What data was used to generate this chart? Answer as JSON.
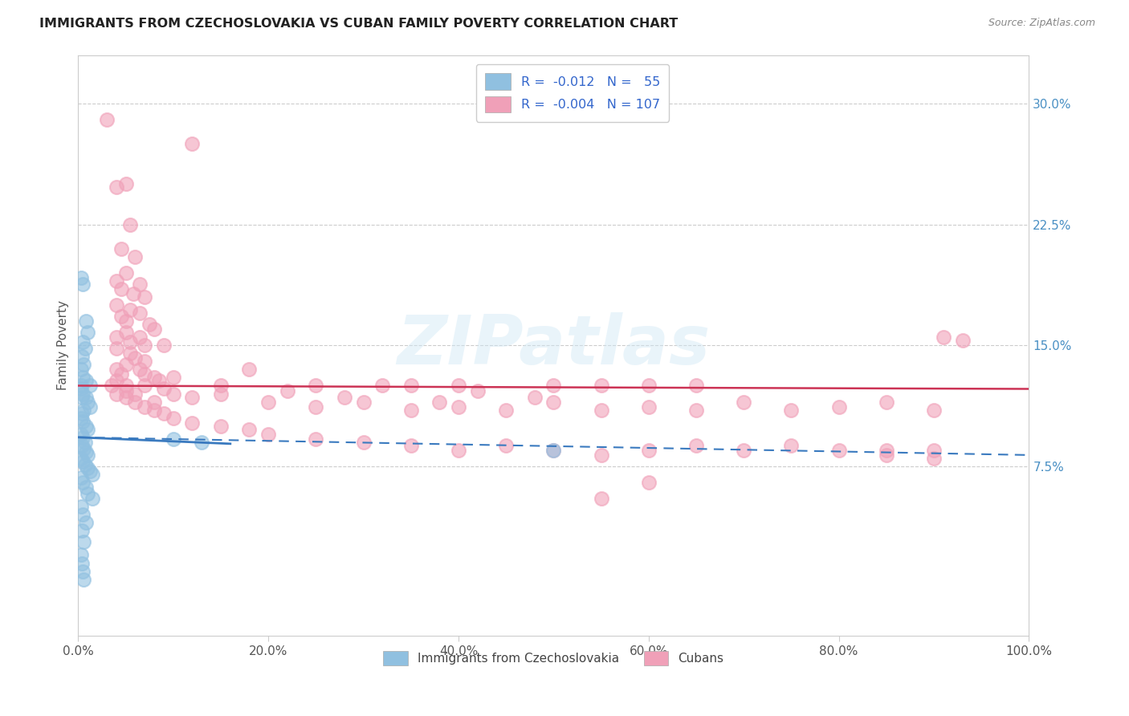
{
  "title": "IMMIGRANTS FROM CZECHOSLOVAKIA VS CUBAN FAMILY POVERTY CORRELATION CHART",
  "source": "Source: ZipAtlas.com",
  "ylabel": "Family Poverty",
  "ytick_values": [
    7.5,
    15.0,
    22.5,
    30.0
  ],
  "legend_bottom": [
    "Immigrants from Czechoslovakia",
    "Cubans"
  ],
  "watermark": "ZIPatlas",
  "blue_color": "#90c0e0",
  "pink_color": "#f0a0b8",
  "blue_line_color": "#3a7abf",
  "pink_line_color": "#cc3355",
  "xlim": [
    0,
    100
  ],
  "ylim": [
    -3,
    33
  ],
  "pink_regression_y0": 12.5,
  "pink_regression_y100": 12.3,
  "blue_solid_x0": 0.0,
  "blue_solid_y0": 9.3,
  "blue_solid_x1": 16.0,
  "blue_solid_y1": 8.9,
  "blue_dash_x0": 0.0,
  "blue_dash_y0": 9.3,
  "blue_dash_x1": 100.0,
  "blue_dash_y1": 8.2,
  "blue_scatter": [
    [
      0.3,
      19.2
    ],
    [
      0.5,
      18.8
    ],
    [
      0.8,
      16.5
    ],
    [
      1.0,
      15.8
    ],
    [
      0.5,
      15.2
    ],
    [
      0.7,
      14.8
    ],
    [
      0.4,
      14.3
    ],
    [
      0.6,
      13.8
    ],
    [
      0.3,
      13.5
    ],
    [
      0.5,
      13.0
    ],
    [
      0.8,
      12.8
    ],
    [
      1.2,
      12.5
    ],
    [
      0.3,
      12.3
    ],
    [
      0.5,
      12.0
    ],
    [
      0.8,
      11.8
    ],
    [
      1.0,
      11.5
    ],
    [
      1.2,
      11.2
    ],
    [
      0.6,
      11.0
    ],
    [
      0.4,
      10.8
    ],
    [
      0.3,
      10.5
    ],
    [
      0.5,
      10.3
    ],
    [
      0.8,
      10.0
    ],
    [
      1.0,
      9.8
    ],
    [
      0.3,
      9.5
    ],
    [
      0.5,
      9.3
    ],
    [
      0.7,
      9.0
    ],
    [
      0.4,
      8.8
    ],
    [
      0.6,
      8.6
    ],
    [
      0.8,
      8.4
    ],
    [
      1.0,
      8.2
    ],
    [
      0.3,
      8.0
    ],
    [
      0.5,
      7.8
    ],
    [
      0.7,
      7.6
    ],
    [
      1.0,
      7.4
    ],
    [
      1.2,
      7.2
    ],
    [
      1.5,
      7.0
    ],
    [
      0.3,
      6.8
    ],
    [
      0.5,
      6.5
    ],
    [
      0.8,
      6.2
    ],
    [
      1.0,
      5.8
    ],
    [
      1.5,
      5.5
    ],
    [
      0.3,
      5.0
    ],
    [
      0.5,
      4.5
    ],
    [
      0.8,
      4.0
    ],
    [
      0.4,
      3.5
    ],
    [
      0.6,
      2.8
    ],
    [
      0.3,
      2.0
    ],
    [
      0.4,
      1.5
    ],
    [
      0.5,
      1.0
    ],
    [
      0.6,
      0.5
    ],
    [
      13.0,
      9.0
    ],
    [
      10.0,
      9.2
    ],
    [
      50.0,
      8.5
    ],
    [
      0.3,
      12.5
    ],
    [
      0.4,
      11.8
    ]
  ],
  "pink_scatter": [
    [
      3.0,
      29.0
    ],
    [
      12.0,
      27.5
    ],
    [
      5.0,
      25.0
    ],
    [
      4.0,
      24.8
    ],
    [
      5.5,
      22.5
    ],
    [
      4.5,
      21.0
    ],
    [
      6.0,
      20.5
    ],
    [
      5.0,
      19.5
    ],
    [
      4.0,
      19.0
    ],
    [
      6.5,
      18.8
    ],
    [
      4.5,
      18.5
    ],
    [
      5.8,
      18.2
    ],
    [
      7.0,
      18.0
    ],
    [
      4.0,
      17.5
    ],
    [
      5.5,
      17.2
    ],
    [
      6.5,
      17.0
    ],
    [
      4.5,
      16.8
    ],
    [
      5.0,
      16.5
    ],
    [
      7.5,
      16.3
    ],
    [
      8.0,
      16.0
    ],
    [
      5.0,
      15.8
    ],
    [
      4.0,
      15.5
    ],
    [
      6.5,
      15.5
    ],
    [
      5.5,
      15.2
    ],
    [
      7.0,
      15.0
    ],
    [
      9.0,
      15.0
    ],
    [
      91.0,
      15.5
    ],
    [
      93.0,
      15.3
    ],
    [
      4.0,
      14.8
    ],
    [
      5.5,
      14.5
    ],
    [
      6.0,
      14.2
    ],
    [
      7.0,
      14.0
    ],
    [
      5.0,
      13.8
    ],
    [
      6.5,
      13.5
    ],
    [
      4.5,
      13.2
    ],
    [
      8.0,
      13.0
    ],
    [
      4.0,
      12.8
    ],
    [
      5.0,
      12.5
    ],
    [
      7.0,
      12.5
    ],
    [
      9.0,
      12.3
    ],
    [
      15.0,
      12.5
    ],
    [
      25.0,
      12.5
    ],
    [
      35.0,
      12.5
    ],
    [
      40.0,
      12.5
    ],
    [
      50.0,
      12.5
    ],
    [
      55.0,
      12.5
    ],
    [
      60.0,
      12.5
    ],
    [
      65.0,
      12.5
    ],
    [
      3.5,
      12.5
    ],
    [
      4.0,
      12.0
    ],
    [
      5.0,
      11.8
    ],
    [
      6.0,
      11.5
    ],
    [
      7.0,
      11.2
    ],
    [
      8.0,
      11.0
    ],
    [
      9.0,
      10.8
    ],
    [
      10.0,
      10.5
    ],
    [
      12.0,
      10.2
    ],
    [
      15.0,
      10.0
    ],
    [
      18.0,
      9.8
    ],
    [
      20.0,
      9.5
    ],
    [
      25.0,
      9.2
    ],
    [
      30.0,
      9.0
    ],
    [
      35.0,
      8.8
    ],
    [
      40.0,
      8.5
    ],
    [
      45.0,
      8.8
    ],
    [
      50.0,
      8.5
    ],
    [
      55.0,
      8.2
    ],
    [
      60.0,
      8.5
    ],
    [
      65.0,
      8.8
    ],
    [
      70.0,
      8.5
    ],
    [
      75.0,
      8.8
    ],
    [
      80.0,
      8.5
    ],
    [
      85.0,
      8.2
    ],
    [
      90.0,
      8.5
    ],
    [
      5.0,
      12.2
    ],
    [
      7.0,
      13.2
    ],
    [
      8.5,
      12.8
    ],
    [
      10.0,
      12.0
    ],
    [
      12.0,
      11.8
    ],
    [
      20.0,
      11.5
    ],
    [
      25.0,
      11.2
    ],
    [
      30.0,
      11.5
    ],
    [
      35.0,
      11.0
    ],
    [
      40.0,
      11.2
    ],
    [
      45.0,
      11.0
    ],
    [
      50.0,
      11.5
    ],
    [
      55.0,
      11.0
    ],
    [
      60.0,
      11.2
    ],
    [
      65.0,
      11.0
    ],
    [
      70.0,
      11.5
    ],
    [
      75.0,
      11.0
    ],
    [
      80.0,
      11.2
    ],
    [
      85.0,
      11.5
    ],
    [
      90.0,
      11.0
    ],
    [
      85.0,
      8.5
    ],
    [
      90.0,
      8.0
    ],
    [
      55.0,
      5.5
    ],
    [
      60.0,
      6.5
    ],
    [
      4.0,
      13.5
    ],
    [
      6.0,
      12.0
    ],
    [
      8.0,
      11.5
    ],
    [
      10.0,
      13.0
    ],
    [
      15.0,
      12.0
    ],
    [
      18.0,
      13.5
    ],
    [
      22.0,
      12.2
    ],
    [
      28.0,
      11.8
    ],
    [
      32.0,
      12.5
    ],
    [
      38.0,
      11.5
    ],
    [
      42.0,
      12.2
    ],
    [
      48.0,
      11.8
    ]
  ]
}
